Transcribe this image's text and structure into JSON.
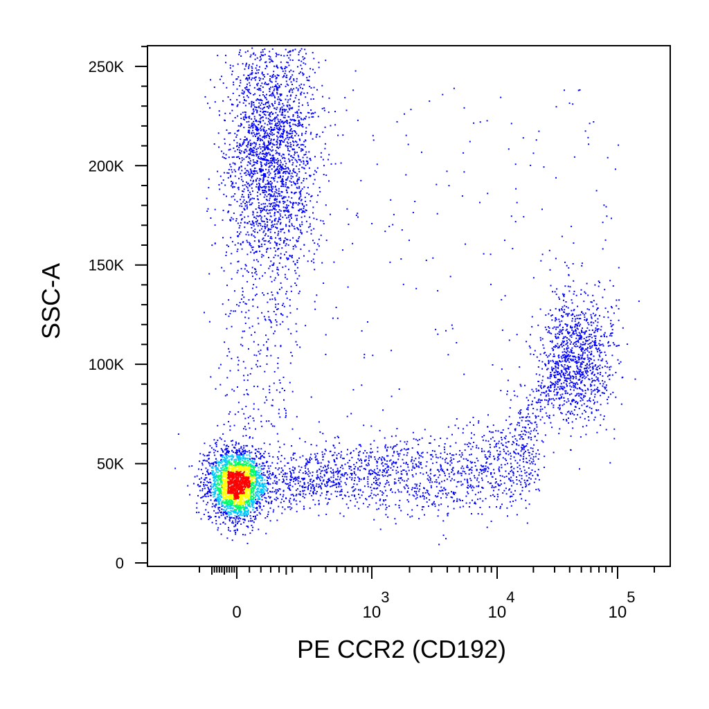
{
  "chart_data": {
    "type": "scatter",
    "style": "pseudocolor density dot plot (flow cytometry)",
    "title": "",
    "xlabel": "PE CCR2 (CD192)",
    "ylabel": "SSC-A",
    "x_scale": "biexponential (linear near 0, log above ~10^3)",
    "y_scale": "linear",
    "xlim": [
      -300,
      200000
    ],
    "ylim": [
      0,
      262144
    ],
    "y_ticks": [
      {
        "value": 0,
        "label": "0"
      },
      {
        "value": 50000,
        "label": "50K"
      },
      {
        "value": 100000,
        "label": "100K"
      },
      {
        "value": 150000,
        "label": "150K"
      },
      {
        "value": 200000,
        "label": "200K"
      },
      {
        "value": 250000,
        "label": "250K"
      }
    ],
    "x_ticks": [
      {
        "value": 0,
        "base": "0",
        "exp": ""
      },
      {
        "value": 1000,
        "base": "10",
        "exp": "3"
      },
      {
        "value": 10000,
        "base": "10",
        "exp": "4"
      },
      {
        "value": 100000,
        "base": "10",
        "exp": "5"
      }
    ],
    "density_colors": [
      "#0000ff",
      "#00c8ff",
      "#00ff66",
      "#ffff00",
      "#ff0000"
    ],
    "populations": [
      {
        "x_center": 0,
        "y_center": 40000,
        "x_spread_decades": 0.12,
        "y_spread": 9000,
        "events": 2600,
        "peak_density": "red"
      },
      {
        "x_center": 60,
        "y_center": 205000,
        "x_spread_decades": 0.18,
        "y_spread": 32000,
        "events": 2400,
        "peak_density": "yellow"
      },
      {
        "x_center": 900,
        "y_center": 42000,
        "x_spread_decades": 0.55,
        "y_spread": 9000,
        "events": 1500,
        "peak_density": "cyan"
      },
      {
        "x_center": 45000,
        "y_center": 104000,
        "x_spread_decades": 0.15,
        "y_spread": 16000,
        "events": 1000,
        "peak_density": "cyan"
      }
    ],
    "grid": false,
    "legend": "none"
  }
}
